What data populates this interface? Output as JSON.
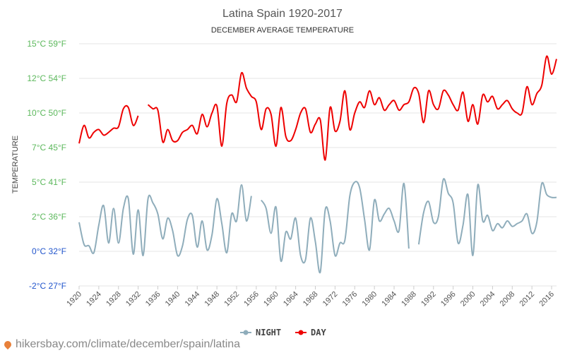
{
  "footer": {
    "site": "hikersbay.com/climate/december/spain/latina",
    "icon": "location-pin-icon",
    "icon_color": "#e8803a"
  },
  "chart_data": {
    "type": "line",
    "title": "Latina Spain 1920-2017",
    "subtitle": "DECEMBER AVERAGE TEMPERATURE",
    "ylabel": "TEMPERATURE",
    "ylim": [
      -2.5,
      15
    ],
    "yticks": [
      {
        "value": 15,
        "label": "15°C 59°F",
        "color": "#5cb85c"
      },
      {
        "value": 12.5,
        "label": "12°C 54°F",
        "color": "#5cb85c"
      },
      {
        "value": 10,
        "label": "10°C 50°F",
        "color": "#5cb85c"
      },
      {
        "value": 7.5,
        "label": "7°C 45°F",
        "color": "#5cb85c"
      },
      {
        "value": 5,
        "label": "5°C 41°F",
        "color": "#5cb85c"
      },
      {
        "value": 2.5,
        "label": "2°C 36°F",
        "color": "#5cb85c"
      },
      {
        "value": 0,
        "label": "0°C 32°F",
        "color": "#2255cc"
      },
      {
        "value": -2.5,
        "label": "-2°C 27°F",
        "color": "#2255cc"
      }
    ],
    "xlim": [
      1920,
      2017
    ],
    "xticks": [
      1920,
      1924,
      1928,
      1932,
      1936,
      1940,
      1944,
      1948,
      1952,
      1956,
      1960,
      1964,
      1968,
      1972,
      1976,
      1980,
      1984,
      1988,
      1992,
      1996,
      2000,
      2004,
      2008,
      2012,
      2016
    ],
    "legend": "bottom-center",
    "series": [
      {
        "name": "NIGHT",
        "color": "#8fadbb",
        "points": [
          [
            1920,
            2.1
          ],
          [
            1921,
            0.5
          ],
          [
            1922,
            0.4
          ],
          [
            1923,
            -0.1
          ],
          [
            1924,
            1.9
          ],
          [
            1925,
            3.3
          ],
          [
            1926,
            0.6
          ],
          [
            1927,
            3.1
          ],
          [
            1928,
            0.6
          ],
          [
            1929,
            3.1
          ],
          [
            1930,
            3.8
          ],
          [
            1931,
            -0.2
          ],
          [
            1932,
            3.0
          ],
          [
            1933,
            -0.3
          ],
          [
            1934,
            3.8
          ],
          [
            1935,
            3.5
          ],
          [
            1936,
            2.7
          ],
          [
            1937,
            0.9
          ],
          [
            1938,
            2.4
          ],
          [
            1939,
            1.5
          ],
          [
            1940,
            -0.3
          ],
          [
            1941,
            0.4
          ],
          [
            1942,
            2.3
          ],
          [
            1943,
            2.6
          ],
          [
            1944,
            0.3
          ],
          [
            1945,
            2.2
          ],
          [
            1946,
            0.1
          ],
          [
            1947,
            1.2
          ],
          [
            1948,
            3.8
          ],
          [
            1949,
            2.0
          ],
          [
            1950,
            -0.1
          ],
          [
            1951,
            2.7
          ],
          [
            1952,
            2.2
          ],
          [
            1953,
            4.8
          ],
          [
            1954,
            2.2
          ],
          [
            1955,
            4.0
          ],
          [
            1957,
            3.7
          ],
          [
            1958,
            3.1
          ],
          [
            1959,
            1.3
          ],
          [
            1960,
            3.2
          ],
          [
            1961,
            -0.7
          ],
          [
            1962,
            1.4
          ],
          [
            1963,
            0.9
          ],
          [
            1964,
            2.4
          ],
          [
            1965,
            -0.3
          ],
          [
            1966,
            -0.6
          ],
          [
            1967,
            2.4
          ],
          [
            1968,
            0.7
          ],
          [
            1969,
            -1.5
          ],
          [
            1970,
            3.0
          ],
          [
            1971,
            2.2
          ],
          [
            1972,
            -0.3
          ],
          [
            1973,
            0.6
          ],
          [
            1974,
            0.8
          ],
          [
            1975,
            4.0
          ],
          [
            1976,
            5.0
          ],
          [
            1977,
            4.6
          ],
          [
            1978,
            2.3
          ],
          [
            1979,
            0.1
          ],
          [
            1980,
            3.7
          ],
          [
            1981,
            2.2
          ],
          [
            1982,
            2.7
          ],
          [
            1983,
            3.1
          ],
          [
            1984,
            2.2
          ],
          [
            1985,
            1.5
          ],
          [
            1986,
            4.9
          ],
          [
            1987,
            0.2
          ],
          [
            1989,
            0.5
          ],
          [
            1990,
            2.8
          ],
          [
            1991,
            3.6
          ],
          [
            1992,
            2.1
          ],
          [
            1993,
            2.5
          ],
          [
            1994,
            5.2
          ],
          [
            1995,
            4.2
          ],
          [
            1996,
            3.5
          ],
          [
            1997,
            0.6
          ],
          [
            1998,
            1.9
          ],
          [
            1999,
            4.1
          ],
          [
            2000,
            -0.3
          ],
          [
            2001,
            4.8
          ],
          [
            2002,
            2.2
          ],
          [
            2003,
            2.6
          ],
          [
            2004,
            1.5
          ],
          [
            2005,
            2.0
          ],
          [
            2006,
            1.7
          ],
          [
            2007,
            2.2
          ],
          [
            2008,
            1.8
          ],
          [
            2009,
            2.0
          ],
          [
            2010,
            2.2
          ],
          [
            2011,
            2.7
          ],
          [
            2012,
            1.3
          ],
          [
            2013,
            2.1
          ],
          [
            2014,
            4.9
          ],
          [
            2015,
            4.1
          ],
          [
            2016,
            3.9
          ],
          [
            2017,
            3.9
          ]
        ]
      },
      {
        "name": "DAY",
        "color": "#ee0000",
        "points": [
          [
            1920,
            7.8
          ],
          [
            1921,
            9.1
          ],
          [
            1922,
            8.2
          ],
          [
            1923,
            8.6
          ],
          [
            1924,
            8.8
          ],
          [
            1925,
            8.4
          ],
          [
            1926,
            8.6
          ],
          [
            1927,
            8.9
          ],
          [
            1928,
            9.0
          ],
          [
            1929,
            10.3
          ],
          [
            1930,
            10.4
          ],
          [
            1931,
            9.1
          ],
          [
            1932,
            9.8
          ],
          [
            1934,
            10.6
          ],
          [
            1935,
            10.3
          ],
          [
            1936,
            10.2
          ],
          [
            1937,
            7.9
          ],
          [
            1938,
            8.8
          ],
          [
            1939,
            8.0
          ],
          [
            1940,
            8.0
          ],
          [
            1941,
            8.6
          ],
          [
            1942,
            8.8
          ],
          [
            1943,
            9.1
          ],
          [
            1944,
            8.5
          ],
          [
            1945,
            9.9
          ],
          [
            1946,
            9.0
          ],
          [
            1947,
            10.0
          ],
          [
            1948,
            10.5
          ],
          [
            1949,
            7.6
          ],
          [
            1950,
            10.7
          ],
          [
            1951,
            11.3
          ],
          [
            1952,
            10.8
          ],
          [
            1953,
            12.9
          ],
          [
            1954,
            11.8
          ],
          [
            1955,
            11.2
          ],
          [
            1956,
            10.8
          ],
          [
            1957,
            8.8
          ],
          [
            1958,
            10.3
          ],
          [
            1959,
            9.9
          ],
          [
            1960,
            7.6
          ],
          [
            1961,
            10.4
          ],
          [
            1962,
            8.3
          ],
          [
            1963,
            8.0
          ],
          [
            1964,
            8.8
          ],
          [
            1965,
            10.0
          ],
          [
            1966,
            10.3
          ],
          [
            1967,
            8.6
          ],
          [
            1968,
            9.2
          ],
          [
            1969,
            9.5
          ],
          [
            1970,
            6.6
          ],
          [
            1971,
            10.4
          ],
          [
            1972,
            8.7
          ],
          [
            1973,
            9.4
          ],
          [
            1974,
            11.6
          ],
          [
            1975,
            8.8
          ],
          [
            1976,
            10.0
          ],
          [
            1977,
            10.8
          ],
          [
            1978,
            10.4
          ],
          [
            1979,
            11.6
          ],
          [
            1980,
            10.6
          ],
          [
            1981,
            11.1
          ],
          [
            1982,
            10.2
          ],
          [
            1983,
            10.6
          ],
          [
            1984,
            10.9
          ],
          [
            1985,
            10.2
          ],
          [
            1986,
            10.6
          ],
          [
            1987,
            10.8
          ],
          [
            1988,
            11.8
          ],
          [
            1989,
            11.4
          ],
          [
            1990,
            9.3
          ],
          [
            1991,
            11.6
          ],
          [
            1992,
            10.6
          ],
          [
            1993,
            10.3
          ],
          [
            1994,
            11.6
          ],
          [
            1995,
            11.3
          ],
          [
            1996,
            10.6
          ],
          [
            1997,
            10.2
          ],
          [
            1998,
            11.5
          ],
          [
            1999,
            9.4
          ],
          [
            2000,
            10.6
          ],
          [
            2001,
            9.2
          ],
          [
            2002,
            11.3
          ],
          [
            2003,
            10.8
          ],
          [
            2004,
            11.2
          ],
          [
            2005,
            10.3
          ],
          [
            2006,
            10.6
          ],
          [
            2007,
            10.9
          ],
          [
            2008,
            10.3
          ],
          [
            2009,
            10.0
          ],
          [
            2010,
            10.0
          ],
          [
            2011,
            11.9
          ],
          [
            2012,
            10.6
          ],
          [
            2013,
            11.4
          ],
          [
            2014,
            12.0
          ],
          [
            2015,
            14.1
          ],
          [
            2016,
            12.8
          ],
          [
            2017,
            13.9
          ]
        ]
      }
    ]
  }
}
